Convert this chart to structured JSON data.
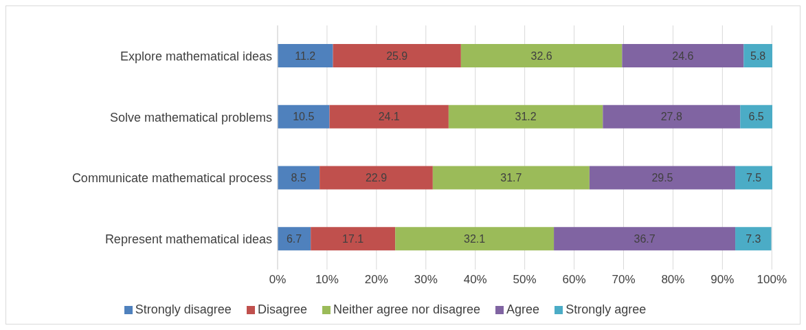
{
  "chart_data": {
    "type": "bar",
    "orientation": "horizontal",
    "stacked": true,
    "data_labels": true,
    "grid": "x",
    "legend": "bottom",
    "categories": [
      "Explore mathematical ideas",
      "Solve mathematical problems",
      "Communicate mathematical process",
      "Represent mathematical ideas"
    ],
    "series": [
      {
        "name": "Strongly disagree",
        "color": "#4f81bd",
        "values": [
          11.2,
          10.5,
          8.5,
          6.7
        ]
      },
      {
        "name": "Disagree",
        "color": "#c0504d",
        "values": [
          25.9,
          24.1,
          22.9,
          17.1
        ]
      },
      {
        "name": "Neither agree nor disagree",
        "color": "#9bbb59",
        "values": [
          32.6,
          31.2,
          31.7,
          32.1
        ]
      },
      {
        "name": "Agree",
        "color": "#8064a2",
        "values": [
          24.6,
          27.8,
          29.5,
          36.7
        ]
      },
      {
        "name": "Strongly agree",
        "color": "#4bacc6",
        "values": [
          5.8,
          6.5,
          7.5,
          7.3
        ]
      }
    ],
    "xlim": [
      0,
      100.1
    ],
    "xticks": [
      {
        "value": 0,
        "label": "0%"
      },
      {
        "value": 10,
        "label": "10%"
      },
      {
        "value": 20,
        "label": "20%"
      },
      {
        "value": 30,
        "label": "30%"
      },
      {
        "value": 40,
        "label": "40%"
      },
      {
        "value": 50,
        "label": "50%"
      },
      {
        "value": 60,
        "label": "60%"
      },
      {
        "value": 70,
        "label": "70%"
      },
      {
        "value": 80,
        "label": "80%"
      },
      {
        "value": 90,
        "label": "90%"
      },
      {
        "value": 100,
        "label": "100%"
      }
    ]
  }
}
